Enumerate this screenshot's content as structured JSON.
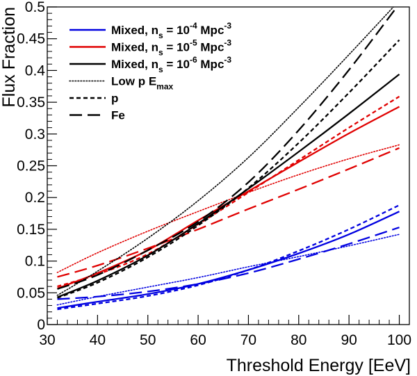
{
  "chart_data": {
    "type": "line",
    "title": "",
    "xlabel": "Threshold Energy [EeV]",
    "ylabel": "Flux Fraction",
    "xlim": [
      30,
      102
    ],
    "ylim": [
      0,
      0.5
    ],
    "x_ticks": [
      30,
      40,
      50,
      60,
      70,
      80,
      90,
      100
    ],
    "x_tick_labels": [
      "30",
      "40",
      "50",
      "60",
      "70",
      "80",
      "90",
      "100"
    ],
    "y_ticks": [
      0,
      0.05,
      0.1,
      0.15,
      0.2,
      0.25,
      0.3,
      0.35,
      0.4,
      0.45,
      0.5
    ],
    "y_tick_labels": [
      "0",
      "0.05",
      "0.1",
      "0.15",
      "0.2",
      "0.25",
      "0.3",
      "0.35",
      "0.4",
      "0.45",
      "0.5"
    ],
    "x": [
      32,
      40,
      50,
      60,
      70,
      80,
      90,
      100
    ],
    "legend_position": "top-left",
    "colors": {
      "blue": "#0000e0",
      "red": "#e00000",
      "black": "#000000"
    },
    "legend": [
      {
        "parts": [
          "Mixed, n",
          "s",
          " = 10",
          "-4",
          " Mpc",
          "-3"
        ],
        "kinds": [
          "t",
          "sub",
          "t",
          "sup",
          "t",
          "sup"
        ],
        "color": "blue",
        "style": "solid"
      },
      {
        "parts": [
          "Mixed, n",
          "s",
          " = 10",
          "-5",
          " Mpc",
          "-3"
        ],
        "kinds": [
          "t",
          "sub",
          "t",
          "sup",
          "t",
          "sup"
        ],
        "color": "red",
        "style": "solid"
      },
      {
        "parts": [
          "Mixed, n",
          "s",
          " = 10",
          "-6",
          " Mpc",
          "-3"
        ],
        "kinds": [
          "t",
          "sub",
          "t",
          "sup",
          "t",
          "sup"
        ],
        "color": "black",
        "style": "solid"
      },
      {
        "parts": [
          "Low p E",
          "max"
        ],
        "kinds": [
          "t",
          "sub"
        ],
        "color": "black",
        "style": "dotted"
      },
      {
        "parts": [
          "p"
        ],
        "kinds": [
          "t"
        ],
        "color": "black",
        "style": "dashed"
      },
      {
        "parts": [
          "Fe"
        ],
        "kinds": [
          "t"
        ],
        "color": "black",
        "style": "longdash"
      }
    ],
    "series": [
      {
        "name": "Mixed ns=1e-4, Mixed",
        "color": "blue",
        "style": "solid",
        "values": [
          0.026,
          0.036,
          0.048,
          0.064,
          0.086,
          0.112,
          0.142,
          0.178
        ]
      },
      {
        "name": "Mixed ns=1e-4, Low p Emax",
        "color": "blue",
        "style": "dotted",
        "values": [
          0.031,
          0.044,
          0.059,
          0.074,
          0.091,
          0.107,
          0.124,
          0.142
        ]
      },
      {
        "name": "Mixed ns=1e-4, p",
        "color": "blue",
        "style": "dashed",
        "values": [
          0.024,
          0.033,
          0.045,
          0.062,
          0.086,
          0.116,
          0.15,
          0.188
        ]
      },
      {
        "name": "Mixed ns=1e-4, Fe",
        "color": "blue",
        "style": "longdash",
        "values": [
          0.04,
          0.044,
          0.052,
          0.064,
          0.081,
          0.103,
          0.127,
          0.153
        ]
      },
      {
        "name": "Mixed ns=1e-5, Mixed",
        "color": "red",
        "style": "solid",
        "values": [
          0.057,
          0.081,
          0.117,
          0.164,
          0.21,
          0.256,
          0.301,
          0.343
        ]
      },
      {
        "name": "Mixed ns=1e-5, Low p Emax",
        "color": "red",
        "style": "dotted",
        "values": [
          0.082,
          0.113,
          0.147,
          0.178,
          0.208,
          0.236,
          0.261,
          0.283
        ]
      },
      {
        "name": "Mixed ns=1e-5, p",
        "color": "red",
        "style": "dashed",
        "values": [
          0.06,
          0.079,
          0.111,
          0.158,
          0.208,
          0.259,
          0.31,
          0.359
        ]
      },
      {
        "name": "Mixed ns=1e-5, Fe",
        "color": "red",
        "style": "longdash",
        "values": [
          0.075,
          0.093,
          0.12,
          0.15,
          0.182,
          0.213,
          0.245,
          0.278
        ]
      },
      {
        "name": "Mixed ns=1e-6, Mixed",
        "color": "black",
        "style": "solid",
        "values": [
          0.043,
          0.069,
          0.109,
          0.159,
          0.214,
          0.272,
          0.332,
          0.394
        ]
      },
      {
        "name": "Mixed ns=1e-6, Low p Emax",
        "color": "black",
        "style": "dotted",
        "values": [
          0.046,
          0.084,
          0.136,
          0.195,
          0.263,
          0.342,
          0.425,
          0.51
        ]
      },
      {
        "name": "Mixed ns=1e-6, p",
        "color": "black",
        "style": "dashed",
        "values": [
          0.042,
          0.066,
          0.106,
          0.156,
          0.215,
          0.286,
          0.365,
          0.448
        ]
      },
      {
        "name": "Mixed ns=1e-6, Fe",
        "color": "black",
        "style": "longdash",
        "values": [
          0.056,
          0.078,
          0.117,
          0.162,
          0.224,
          0.306,
          0.401,
          0.505
        ]
      }
    ]
  }
}
